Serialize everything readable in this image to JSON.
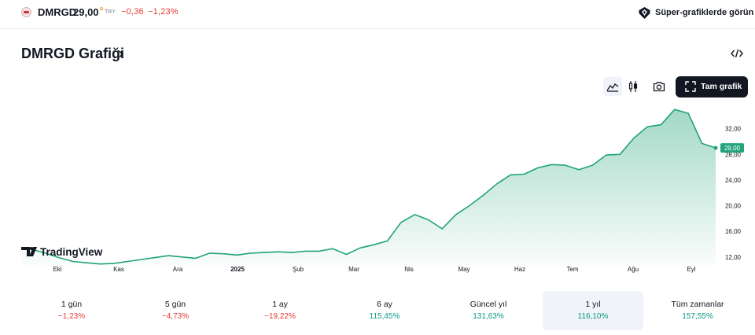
{
  "header": {
    "symbol": "DMRGD",
    "price": "29,00",
    "currency": "TRY",
    "change": "−0,36",
    "change_pct": "−1,23%",
    "super_label": "Süper-grafiklerde görün"
  },
  "title": "DMRGD Grafiği",
  "title_chevron": "›",
  "toolbar": {
    "full_chart_label": "Tam grafik",
    "icons": [
      "area-chart-icon",
      "candles-icon",
      "camera-icon",
      "embed-code-icon",
      "fullscreen-icon"
    ]
  },
  "watermark": "TradingView",
  "colors": {
    "line": "#22a37a",
    "negative": "#e53935",
    "positive": "#089981",
    "price_tag": "#22a37a"
  },
  "chart_data": {
    "type": "area",
    "title": "",
    "xlabel": "",
    "ylabel": "",
    "x_ticks": [
      "Eki",
      "Kas",
      "Ara",
      "2025",
      "Şub",
      "Mar",
      "Nis",
      "May",
      "Haz",
      "Tem",
      "Ağu",
      "Eyl"
    ],
    "y_ticks": [
      "12,00",
      "16,00",
      "20,00",
      "24,00",
      "28,00",
      "32,00"
    ],
    "ylim": [
      10.5,
      36
    ],
    "last_price_label": "29,00",
    "series": [
      {
        "x": [
          "2024-09-26",
          "2024-10-01",
          "2024-10-08",
          "2024-10-15",
          "2024-10-22",
          "2024-10-29",
          "2024-11-05",
          "2024-11-12",
          "2024-11-19",
          "2024-11-26",
          "2024-12-03",
          "2024-12-10",
          "2024-12-17",
          "2024-12-24",
          "2024-12-31",
          "2025-01-07",
          "2025-01-14",
          "2025-01-21",
          "2025-01-28",
          "2025-02-04",
          "2025-02-11",
          "2025-02-18",
          "2025-02-25",
          "2025-03-04",
          "2025-03-11",
          "2025-03-18",
          "2025-03-25",
          "2025-04-01",
          "2025-04-08",
          "2025-04-15",
          "2025-04-22",
          "2025-04-29",
          "2025-05-06",
          "2025-05-13",
          "2025-05-20",
          "2025-05-27",
          "2025-06-03",
          "2025-06-10",
          "2025-06-17",
          "2025-06-24",
          "2025-07-01",
          "2025-07-08",
          "2025-07-15",
          "2025-07-22",
          "2025-07-29",
          "2025-08-05",
          "2025-08-12",
          "2025-08-19",
          "2025-08-26",
          "2025-09-02",
          "2025-09-09",
          "2025-09-16"
        ],
        "values": [
          13.3,
          13.2,
          12.6,
          11.9,
          11.3,
          11.1,
          10.9,
          11.0,
          11.3,
          11.6,
          11.9,
          12.2,
          12.0,
          11.8,
          12.6,
          12.5,
          12.3,
          12.6,
          12.7,
          12.8,
          12.7,
          12.9,
          12.9,
          13.3,
          12.4,
          13.4,
          13.9,
          14.5,
          17.4,
          18.6,
          17.8,
          16.4,
          18.6,
          20.0,
          21.6,
          23.4,
          24.8,
          24.9,
          25.9,
          26.4,
          26.3,
          25.6,
          26.3,
          27.9,
          28.0,
          30.5,
          32.3,
          32.6,
          35.0,
          34.4,
          29.7,
          29.0
        ]
      }
    ]
  },
  "periods": [
    {
      "label": "1 gün",
      "value": "−1,23%",
      "sign": "neg"
    },
    {
      "label": "5 gün",
      "value": "−4,73%",
      "sign": "neg"
    },
    {
      "label": "1 ay",
      "value": "−19,22%",
      "sign": "neg"
    },
    {
      "label": "6 ay",
      "value": "115,45%",
      "sign": "pos"
    },
    {
      "label": "Güncel yıl",
      "value": "131,63%",
      "sign": "pos"
    },
    {
      "label": "1 yıl",
      "value": "116,10%",
      "sign": "pos",
      "active": true
    },
    {
      "label": "Tüm zamanlar",
      "value": "157,55%",
      "sign": "pos"
    }
  ]
}
